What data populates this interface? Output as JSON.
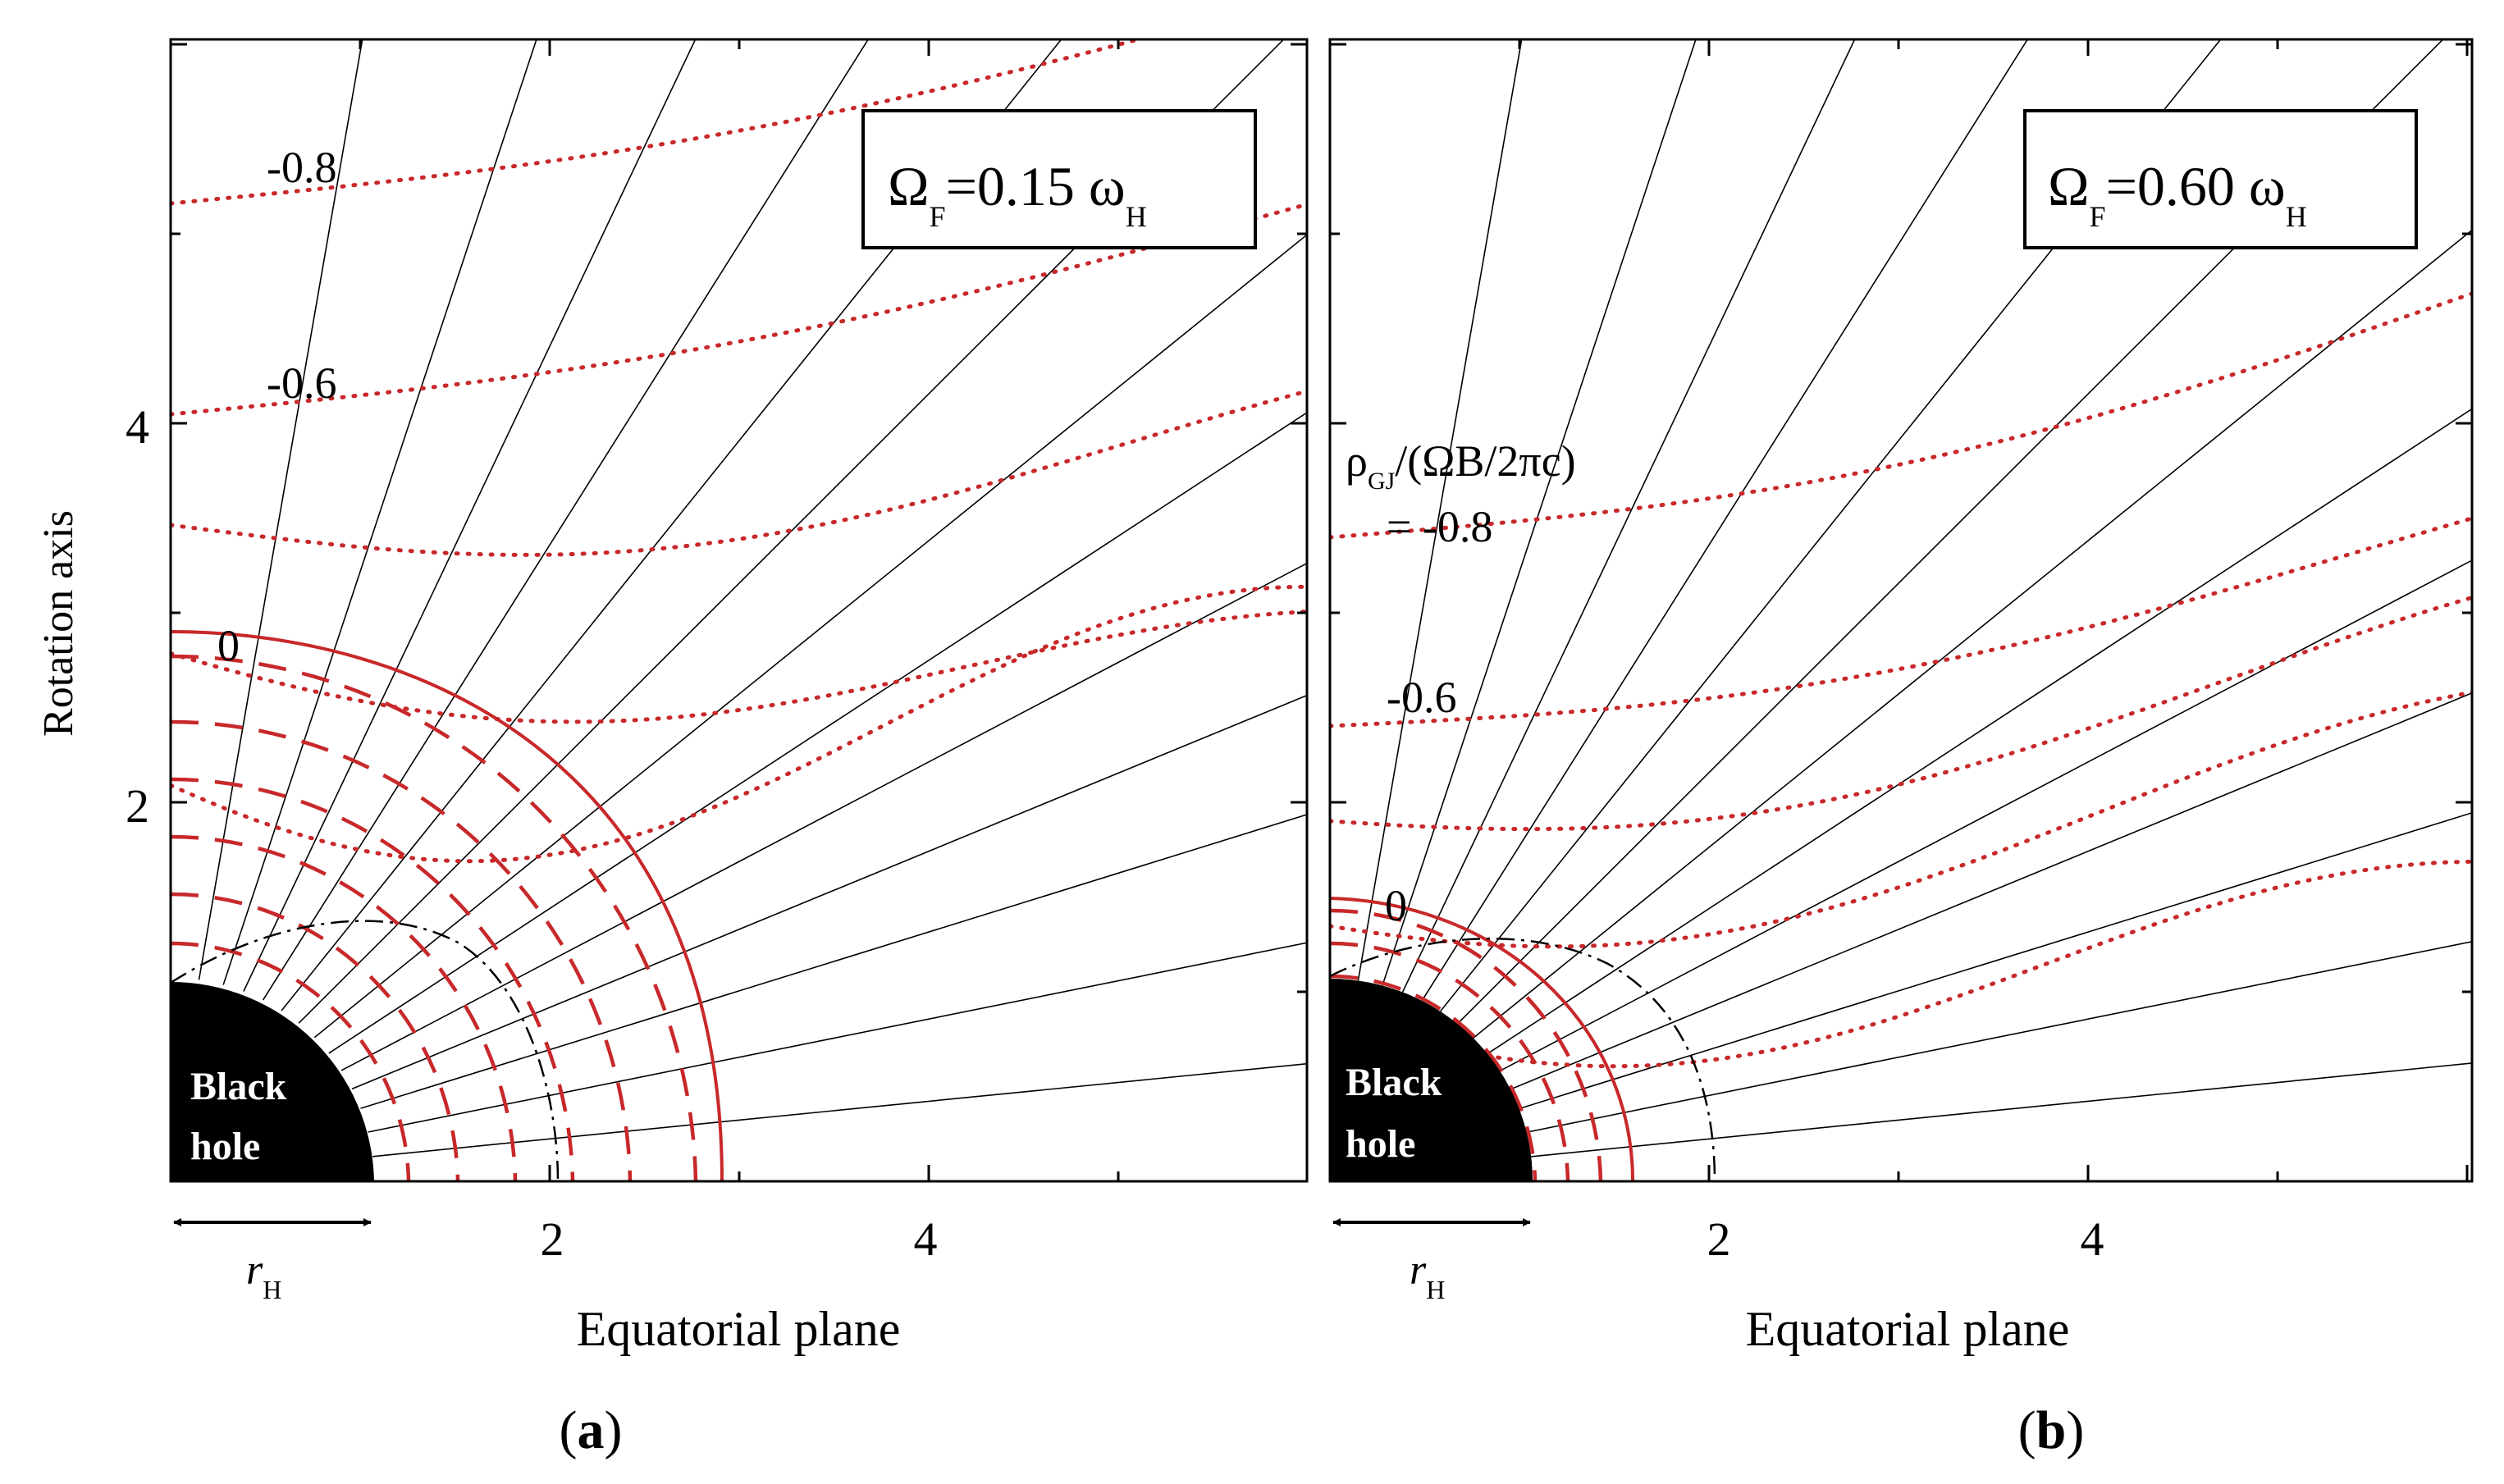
{
  "figure": {
    "y_axis_label": "Rotation axis",
    "panels": [
      {
        "id": "a",
        "caption": "(a)",
        "caption_letter": "a",
        "box_label_main": "Ω",
        "box_label_sub": "F",
        "box_label_value": "=0.15 ω",
        "box_label_value_sub": "H",
        "x_axis_label": "Equatorial plane",
        "x_ticks": [
          "2",
          "4"
        ],
        "y_ticks": [
          "4",
          "2"
        ],
        "black_hole_line1": "Black",
        "black_hole_line2": "hole",
        "horizon_label": "r",
        "horizon_sub": "H",
        "contour_labels": [
          "-0.8",
          "-0.6",
          "0"
        ],
        "rho_label_line1": "",
        "rho_label_line2": ""
      },
      {
        "id": "b",
        "caption": "(b)",
        "caption_letter": "b",
        "box_label_main": "Ω",
        "box_label_sub": "F",
        "box_label_value": "=0.60 ω",
        "box_label_value_sub": "H",
        "x_axis_label": "Equatorial plane",
        "x_ticks": [
          "2",
          "4"
        ],
        "y_ticks": [],
        "black_hole_line1": "Black",
        "black_hole_line2": "hole",
        "horizon_label": "r",
        "horizon_sub": "H",
        "contour_labels": [
          "-0.6",
          "0"
        ],
        "rho_label_line1": "ρ",
        "rho_label_sub": "GJ",
        "rho_label_rest": "/(ΩB/2πc)",
        "rho_label_line2": "= -0.8"
      }
    ],
    "colors": {
      "contour": "#c8282a",
      "field_line": "#000000",
      "black_hole": "#000000",
      "frame": "#000000"
    }
  }
}
